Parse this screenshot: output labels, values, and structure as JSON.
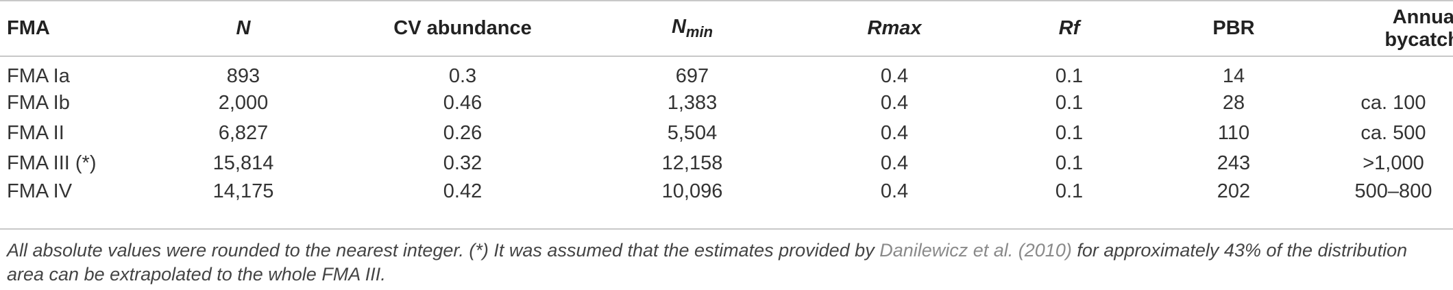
{
  "table": {
    "headers": {
      "fma": "FMA",
      "n": "N",
      "cv": "CV abundance",
      "nmin_base": "N",
      "nmin_sub": "min",
      "rmax": "Rmax",
      "rf": "Rf",
      "pbr": "PBR",
      "bycatch": "Annual bycatch"
    },
    "rows": [
      {
        "fma": "FMA Ia",
        "n": "893",
        "cv": "0.3",
        "nmin": "697",
        "rmax": "0.4",
        "rf": "0.1",
        "pbr": "14",
        "bycatch": ""
      },
      {
        "fma": "FMA Ib",
        "n": "2,000",
        "cv": "0.46",
        "nmin": "1,383",
        "rmax": "0.4",
        "rf": "0.1",
        "pbr": "28",
        "bycatch": "ca. 100"
      },
      {
        "fma": "FMA II",
        "n": "6,827",
        "cv": "0.26",
        "nmin": "5,504",
        "rmax": "0.4",
        "rf": "0.1",
        "pbr": "110",
        "bycatch": "ca. 500"
      },
      {
        "fma": "FMA III (*)",
        "n": "15,814",
        "cv": "0.32",
        "nmin": "12,158",
        "rmax": "0.4",
        "rf": "0.1",
        "pbr": "243",
        "bycatch": ">1,000"
      },
      {
        "fma": "FMA IV",
        "n": "14,175",
        "cv": "0.42",
        "nmin": "10,096",
        "rmax": "0.4",
        "rf": "0.1",
        "pbr": "202",
        "bycatch": "500–800"
      }
    ]
  },
  "footnote": {
    "text_before": "All absolute values were rounded to the nearest integer. (*) It was assumed that the estimates provided by ",
    "citation": "Danilewicz et al. (2010)",
    "text_after": " for approximately 43% of the distribution area can be extrapolated to the whole FMA III."
  }
}
